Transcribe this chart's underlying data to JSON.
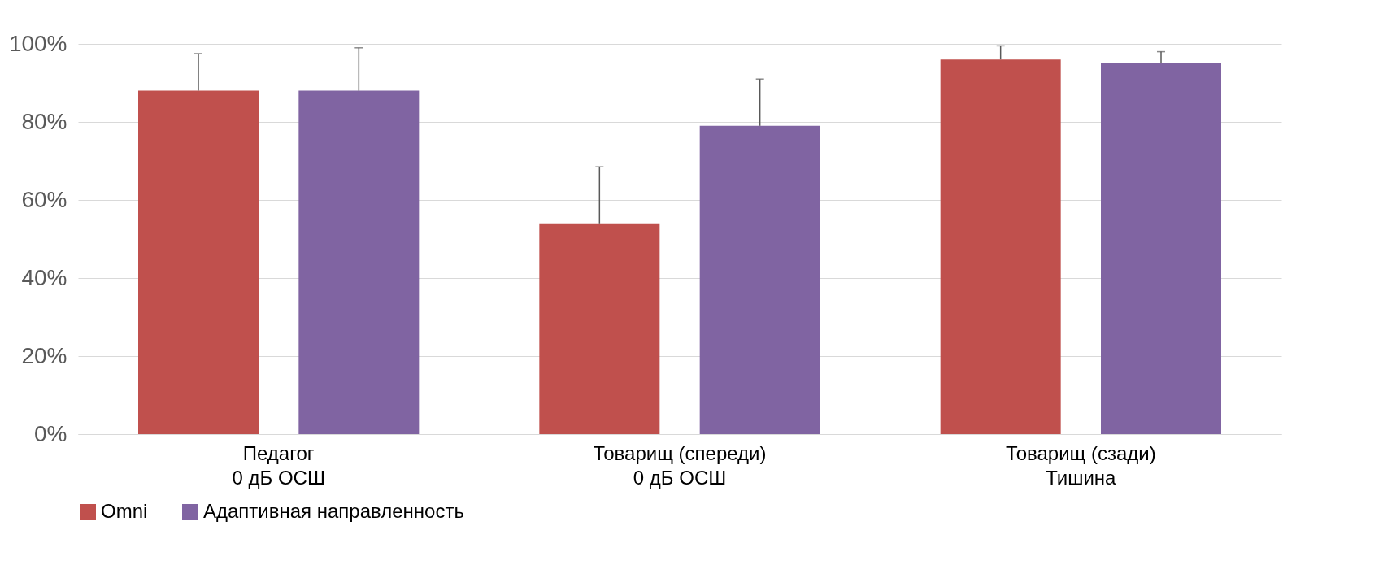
{
  "chart_data": {
    "type": "bar",
    "categories": [
      "Педагог\n0 дБ ОСШ",
      "Товарищ (спереди)\n0 дБ ОСШ",
      "Товарищ (сзади)\nТишина"
    ],
    "series": [
      {
        "name": "Omni",
        "color": "#c0504d",
        "values": [
          88,
          54,
          96
        ],
        "errors": [
          [
            88,
            97.5
          ],
          [
            54,
            68.5
          ],
          [
            96,
            99.5
          ]
        ]
      },
      {
        "name": "Адаптивная направленность",
        "color": "#8064a2",
        "values": [
          88,
          79,
          95
        ],
        "errors": [
          [
            88,
            99
          ],
          [
            79,
            91
          ],
          [
            95,
            98
          ]
        ]
      }
    ],
    "ylim": [
      0,
      100
    ],
    "yticks": [
      {
        "value": 0,
        "label": "0%"
      },
      {
        "value": 20,
        "label": "20%"
      },
      {
        "value": 40,
        "label": "40%"
      },
      {
        "value": 60,
        "label": "60%"
      },
      {
        "value": 80,
        "label": "80%"
      },
      {
        "value": 100,
        "label": "100%"
      }
    ],
    "grid": "y",
    "legend": "bottom"
  }
}
